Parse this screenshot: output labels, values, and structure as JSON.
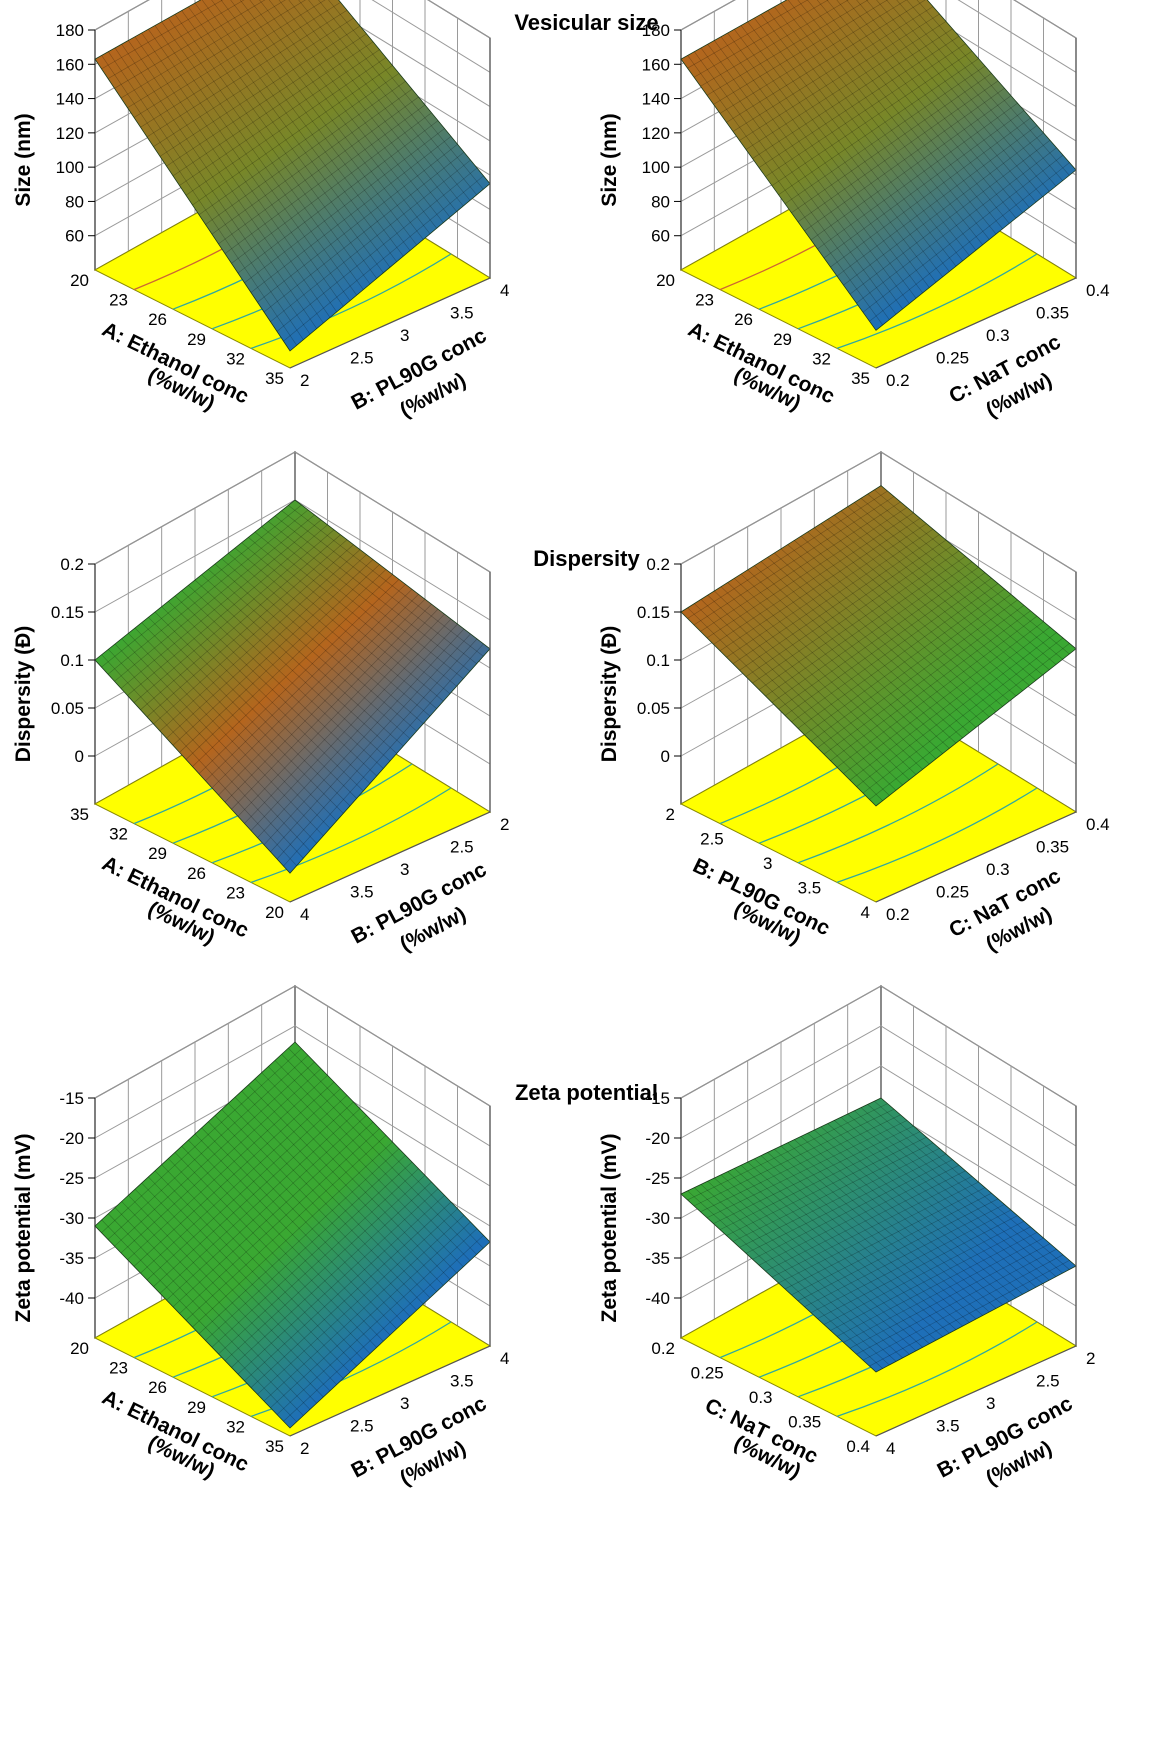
{
  "sections": [
    {
      "title": "Vesicular size"
    },
    {
      "title": "Dispersity"
    },
    {
      "title": "Zeta potential"
    }
  ],
  "colors": {
    "floor": "#ffff00",
    "floor_edge": "#8a8a00",
    "frame": "#555555",
    "grid": "#9a9a9a",
    "surface_high": "#b5651d",
    "surface_mid": "#3aa832",
    "surface_low": "#1e6fb8"
  },
  "chart_data": [
    {
      "type": "surface3d",
      "section": "Vesicular size",
      "zlabel": "Size (nm)",
      "zticks": [
        "60",
        "80",
        "100",
        "120",
        "140",
        "160",
        "180"
      ],
      "zlim": [
        40,
        180
      ],
      "left_axis": {
        "label": "A: Ethanol conc",
        "unit": "(%w/w)",
        "ticks": [
          "20",
          "23",
          "26",
          "29",
          "32",
          "35"
        ]
      },
      "right_axis": {
        "label": "B: PL90G conc",
        "unit": "(%w/w)",
        "ticks": [
          "2",
          "2.5",
          "3",
          "3.5",
          "4"
        ]
      },
      "corner_z": {
        "back": 163,
        "left": 163,
        "front": 50,
        "right": 95
      },
      "corner_tones": {
        "back": "high",
        "left": "high",
        "front": "low",
        "right": "mid"
      }
    },
    {
      "type": "surface3d",
      "section": "Vesicular size",
      "zlabel": "Size (nm)",
      "zticks": [
        "60",
        "80",
        "100",
        "120",
        "140",
        "160",
        "180"
      ],
      "zlim": [
        40,
        180
      ],
      "left_axis": {
        "label": "A: Ethanol conc",
        "unit": "(%w/w)",
        "ticks": [
          "20",
          "23",
          "26",
          "29",
          "32",
          "35"
        ]
      },
      "right_axis": {
        "label": "C: NaT conc",
        "unit": "(%w/w)",
        "ticks": [
          "0.2",
          "0.25",
          "0.3",
          "0.35",
          "0.4"
        ]
      },
      "corner_z": {
        "back": 163,
        "left": 163,
        "front": 62,
        "right": 103
      },
      "corner_tones": {
        "back": "high",
        "left": "high",
        "front": "low",
        "right": "mid"
      }
    },
    {
      "type": "surface3d",
      "section": "Dispersity",
      "zlabel": "Dispersity (Đ)",
      "zticks": [
        "0",
        "0.05",
        "0.1",
        "0.15",
        "0.2"
      ],
      "zlim": [
        -0.05,
        0.2
      ],
      "left_axis": {
        "label": "A: Ethanol conc",
        "unit": "(%w/w)",
        "ticks": [
          "35",
          "32",
          "29",
          "26",
          "23",
          "20"
        ]
      },
      "right_axis": {
        "label": "B: PL90G conc",
        "unit": "(%w/w)",
        "ticks": [
          "4",
          "3.5",
          "3",
          "2.5",
          "2"
        ]
      },
      "corner_z": {
        "back": 0.15,
        "left": 0.1,
        "front": -0.02,
        "right": 0.12
      },
      "corner_tones": {
        "back": "high",
        "left": "mid",
        "front": "low",
        "right": "high"
      }
    },
    {
      "type": "surface3d",
      "section": "Dispersity",
      "zlabel": "Dispersity (Đ)",
      "zticks": [
        "0",
        "0.05",
        "0.1",
        "0.15",
        "0.2"
      ],
      "zlim": [
        -0.05,
        0.2
      ],
      "left_axis": {
        "label": "B: PL90G conc",
        "unit": "(%w/w)",
        "ticks": [
          "2",
          "2.5",
          "3",
          "3.5",
          "4"
        ]
      },
      "right_axis": {
        "label": "C: NaT conc",
        "unit": "(%w/w)",
        "ticks": [
          "0.2",
          "0.25",
          "0.3",
          "0.35",
          "0.4"
        ]
      },
      "corner_z": {
        "back": 0.165,
        "left": 0.15,
        "front": 0.05,
        "right": 0.12
      },
      "corner_tones": {
        "back": "high",
        "left": "high",
        "front": "mid",
        "right": "mid"
      }
    },
    {
      "type": "surface3d",
      "section": "Zeta potential",
      "zlabel": "Zeta potential (mV)",
      "zticks": [
        "-40",
        "-35",
        "-30",
        "-25",
        "-20",
        "-15"
      ],
      "zlim": [
        -45,
        -15
      ],
      "left_axis": {
        "label": "A: Ethanol conc",
        "unit": "(%w/w)",
        "ticks": [
          "20",
          "23",
          "26",
          "29",
          "32",
          "35"
        ]
      },
      "right_axis": {
        "label": "B: PL90G conc",
        "unit": "(%w/w)",
        "ticks": [
          "2",
          "2.5",
          "3",
          "3.5",
          "4"
        ]
      },
      "corner_z": {
        "back": -22,
        "left": -31,
        "front": -44,
        "right": -32
      },
      "corner_tones": {
        "back": "mid",
        "left": "mid",
        "front": "low",
        "right": "mid"
      }
    },
    {
      "type": "surface3d",
      "section": "Zeta potential",
      "zlabel": "Zeta potential (mV)",
      "zticks": [
        "-40",
        "-35",
        "-30",
        "-25",
        "-20",
        "-15"
      ],
      "zlim": [
        -45,
        -15
      ],
      "left_axis": {
        "label": "C: NaT conc",
        "unit": "(%w/w)",
        "ticks": [
          "0.2",
          "0.25",
          "0.3",
          "0.35",
          "0.4"
        ]
      },
      "right_axis": {
        "label": "B: PL90G conc",
        "unit": "(%w/w)",
        "ticks": [
          "4",
          "3.5",
          "3",
          "2.5",
          "2"
        ]
      },
      "corner_z": {
        "back": -29,
        "left": -27,
        "front": -37,
        "right": -35
      },
      "corner_tones": {
        "back": "mid",
        "left": "mid",
        "front": "low",
        "right": "low"
      }
    }
  ]
}
